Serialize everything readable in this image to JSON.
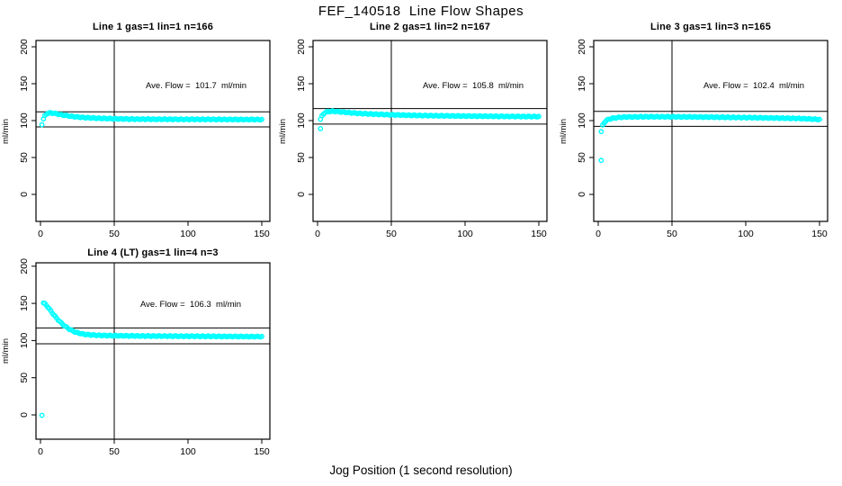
{
  "figure": {
    "title": "FEF_140518  Line Flow Shapes",
    "xlabel": "Jog Position (1 second resolution)",
    "ylabel": "ml/min",
    "point_color": "#00ffff",
    "axis_color": "#000000",
    "background": "#ffffff"
  },
  "chart_data": [
    {
      "type": "scatter",
      "title": "Line 1 gas=1 lin=1 n=166",
      "annotation": "Ave. Flow =  101.7  ml/min",
      "ave_flow_ml_min": 101.7,
      "n_points": 166,
      "xlabel": "Jog Position (1 second resolution)",
      "ylabel": "ml/min",
      "xticks": [
        0,
        50,
        100,
        150
      ],
      "yticks": [
        0,
        50,
        100,
        150,
        200
      ],
      "xlim": [
        0,
        155
      ],
      "ylim": [
        -35,
        205
      ],
      "vline_x": 50,
      "hlines": [
        111.9,
        91.5
      ],
      "curve_keypoints": [
        [
          1,
          95
        ],
        [
          2,
          102
        ],
        [
          3,
          106.5
        ],
        [
          4,
          108.8
        ],
        [
          5,
          110
        ],
        [
          7,
          110.4
        ],
        [
          9,
          110
        ],
        [
          12,
          108.8
        ],
        [
          15,
          107.6
        ],
        [
          20,
          106
        ],
        [
          25,
          104.9
        ],
        [
          30,
          104.1
        ],
        [
          35,
          103.5
        ],
        [
          40,
          103.1
        ],
        [
          50,
          102.5
        ],
        [
          60,
          102.1
        ],
        [
          80,
          101.8
        ],
        [
          100,
          101.7
        ],
        [
          120,
          101.6
        ],
        [
          150,
          101.4
        ]
      ],
      "outliers": []
    },
    {
      "type": "scatter",
      "title": "Line 2 gas=1 lin=2 n=167",
      "annotation": "Ave. Flow =  105.8  ml/min",
      "ave_flow_ml_min": 105.8,
      "n_points": 167,
      "xlabel": "Jog Position (1 second resolution)",
      "ylabel": "ml/min",
      "xticks": [
        0,
        50,
        100,
        150
      ],
      "yticks": [
        0,
        50,
        100,
        150,
        200
      ],
      "xlim": [
        0,
        155
      ],
      "ylim": [
        -35,
        205
      ],
      "vline_x": 50,
      "hlines": [
        116.4,
        95.2
      ],
      "curve_keypoints": [
        [
          2,
          101.5
        ],
        [
          3,
          106
        ],
        [
          4,
          109
        ],
        [
          5,
          110.8
        ],
        [
          7,
          112.2
        ],
        [
          10,
          112.6
        ],
        [
          13,
          112.3
        ],
        [
          16,
          111.7
        ],
        [
          20,
          111
        ],
        [
          25,
          110.2
        ],
        [
          30,
          109.5
        ],
        [
          40,
          108.6
        ],
        [
          50,
          107.9
        ],
        [
          60,
          107.3
        ],
        [
          70,
          106.9
        ],
        [
          80,
          106.6
        ],
        [
          100,
          106.1
        ],
        [
          120,
          105.8
        ],
        [
          150,
          105.4
        ]
      ],
      "outliers": [
        [
          2,
          89
        ]
      ]
    },
    {
      "type": "scatter",
      "title": "Line 3 gas=1 lin=3 n=165",
      "annotation": "Ave. Flow =  102.4  ml/min",
      "ave_flow_ml_min": 102.4,
      "n_points": 165,
      "xlabel": "Jog Position (1 second resolution)",
      "ylabel": "ml/min",
      "xticks": [
        0,
        50,
        100,
        150
      ],
      "yticks": [
        0,
        50,
        100,
        150,
        200
      ],
      "xlim": [
        0,
        155
      ],
      "ylim": [
        -35,
        205
      ],
      "vline_x": 50,
      "hlines": [
        112.6,
        92.2
      ],
      "curve_keypoints": [
        [
          3,
          93.5
        ],
        [
          4,
          97
        ],
        [
          5,
          99.3
        ],
        [
          6,
          100.8
        ],
        [
          8,
          102.4
        ],
        [
          10,
          103.3
        ],
        [
          13,
          104.1
        ],
        [
          16,
          104.6
        ],
        [
          20,
          104.9
        ],
        [
          30,
          105.2
        ],
        [
          45,
          105.2
        ],
        [
          60,
          105
        ],
        [
          80,
          104.6
        ],
        [
          100,
          104.1
        ],
        [
          120,
          103.5
        ],
        [
          135,
          102.9
        ],
        [
          145,
          102.1
        ],
        [
          150,
          101.5
        ]
      ],
      "outliers": [
        [
          2,
          85
        ],
        [
          2,
          46
        ]
      ]
    },
    {
      "type": "scatter",
      "title": "Line 4 (LT) gas=1 lin=4 n=3",
      "annotation": "Ave. Flow =  106.3  ml/min",
      "ave_flow_ml_min": 106.3,
      "n_points": 3,
      "xlabel": "Jog Position (1 second resolution)",
      "ylabel": "ml/min",
      "xticks": [
        0,
        50,
        100,
        150
      ],
      "yticks": [
        0,
        50,
        100,
        150,
        200
      ],
      "xlim": [
        0,
        155
      ],
      "ylim": [
        -35,
        205
      ],
      "vline_x": 50,
      "hlines": [
        116.9,
        95.7
      ],
      "curve_keypoints": [
        [
          2,
          150.5
        ],
        [
          3,
          149.5
        ],
        [
          4,
          147.5
        ],
        [
          5,
          145
        ],
        [
          6,
          142.4
        ],
        [
          7,
          139.8
        ],
        [
          8,
          137.2
        ],
        [
          9,
          134.7
        ],
        [
          10,
          132.3
        ],
        [
          12,
          127.8
        ],
        [
          14,
          123.8
        ],
        [
          16,
          120.3
        ],
        [
          18,
          117.3
        ],
        [
          20,
          114.8
        ],
        [
          22,
          112.8
        ],
        [
          24,
          111.2
        ],
        [
          26,
          110
        ],
        [
          28,
          109.1
        ],
        [
          30,
          108.4
        ],
        [
          34,
          107.6
        ],
        [
          38,
          107.1
        ],
        [
          45,
          106.7
        ],
        [
          55,
          106.4
        ],
        [
          70,
          106.1
        ],
        [
          90,
          105.9
        ],
        [
          110,
          105.7
        ],
        [
          130,
          105.5
        ],
        [
          150,
          105.3
        ]
      ],
      "outliers": [
        [
          1,
          0
        ]
      ]
    }
  ]
}
